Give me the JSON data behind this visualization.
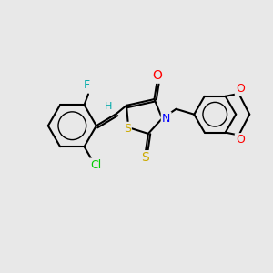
{
  "bg_color": "#e8e8e8",
  "bond_color": "#000000",
  "atom_colors": {
    "O": "#ff0000",
    "N": "#0000ff",
    "S": "#ccaa00",
    "F": "#00aaaa",
    "Cl": "#00cc00",
    "H": "#00aaaa",
    "C": "#000000"
  },
  "font_size": 9,
  "bond_width": 1.5
}
